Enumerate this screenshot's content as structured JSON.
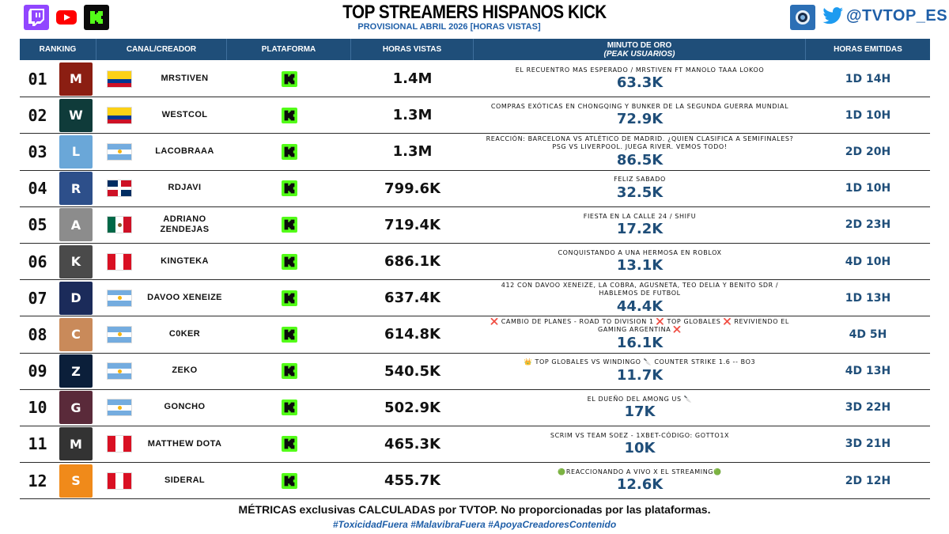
{
  "header": {
    "title": "TOP STREAMERS HISPANOS KICK",
    "subtitle": "PROVISIONAL ABRIL 2026 [HORAS VISTAS]",
    "handle": "@TVTOP_ES",
    "logos": [
      "twitch-icon",
      "youtube-icon",
      "kick-icon"
    ]
  },
  "columns": {
    "ranking": "RANKING",
    "canal": "CANAL/CREADOR",
    "plataforma": "PLATAFORMA",
    "horas_vistas": "HORAS VISTAS",
    "minuto_oro": "MINUTO DE ORO",
    "peak": "(PEAK USUARIOS)",
    "horas_emitidas": "HORAS EMITIDAS"
  },
  "rows": [
    {
      "rank": "01",
      "name": "MRSTIVEN",
      "country": "colombia",
      "platform": "kick",
      "hours": "1.4M",
      "peak_title": "EL RECUENTRO MAS ESPERADO / MRSTIVEN FT MANOLO TAAA LOKOO",
      "peak": "63.3K",
      "emitted": "1D 14H",
      "avatar_color": "#8b1e12",
      "avatar_text": "M"
    },
    {
      "rank": "02",
      "name": "WESTCOL",
      "country": "colombia",
      "platform": "kick",
      "hours": "1.3M",
      "peak_title": "COMPRAS EXÓTICAS EN CHONGQING Y BUNKER DE LA SEGUNDA GUERRA MUNDIAL",
      "peak": "72.9K",
      "emitted": "1D 10H",
      "avatar_color": "#0f3b3a",
      "avatar_text": "W"
    },
    {
      "rank": "03",
      "name": "LACOBRAAA",
      "country": "argentina",
      "platform": "kick",
      "hours": "1.3M",
      "peak_title": "REACCIÓN: BARCELONA VS ATLÉTICO DE MADRID. ¿QUIEN CLASIFICA A SEMIFINALES? PSG VS LIVERPOOL. JUEGA RIVER. VEMOS TODO!",
      "peak": "86.5K",
      "emitted": "2D 20H",
      "avatar_color": "#6aa7d8",
      "avatar_text": "L"
    },
    {
      "rank": "04",
      "name": "RDJAVI",
      "country": "dominican",
      "platform": "kick",
      "hours": "799.6K",
      "peak_title": "FELIZ SABADO",
      "peak": "32.5K",
      "emitted": "1D 10H",
      "avatar_color": "#2d4f8a",
      "avatar_text": "R"
    },
    {
      "rank": "05",
      "name": "ADRIANO ZENDEJAS",
      "country": "mexico",
      "platform": "kick",
      "hours": "719.4K",
      "peak_title": "FIESTA EN LA CALLE 24 / SHIFU",
      "peak": "17.2K",
      "emitted": "2D 23H",
      "avatar_color": "#8c8c8c",
      "avatar_text": "A"
    },
    {
      "rank": "06",
      "name": "KINGTEKA",
      "country": "peru",
      "platform": "kick",
      "hours": "686.1K",
      "peak_title": "CONQUISTANDO A UNA HERMOSA EN ROBLOX",
      "peak": "13.1K",
      "emitted": "4D 10H",
      "avatar_color": "#4a4a4a",
      "avatar_text": "K"
    },
    {
      "rank": "07",
      "name": "DAVOO XENEIZE",
      "country": "argentina",
      "platform": "kick",
      "hours": "637.4K",
      "peak_title": "412 CON DAVOO XENEIZE, LA COBRA, AGUSNETA, TEO DELIA Y BENITO SDR / HABLEMOS DE FUTBOL",
      "peak": "44.4K",
      "emitted": "1D 13H",
      "avatar_color": "#1b2b5a",
      "avatar_text": "D"
    },
    {
      "rank": "08",
      "name": "C0KER",
      "country": "argentina",
      "platform": "kick",
      "hours": "614.8K",
      "peak_title": "❌ CAMBIO DE PLANES - ROAD TO DIVISION 1 ❌ TOP GLOBALES ❌ REVIVIENDO EL GAMING ARGENTINA ❌",
      "peak": "16.1K",
      "emitted": "4D 5H",
      "avatar_color": "#c98a5a",
      "avatar_text": "C"
    },
    {
      "rank": "09",
      "name": "ZEKO",
      "country": "argentina",
      "platform": "kick",
      "hours": "540.5K",
      "peak_title": "👑 TOP GLOBALES VS WINDINGO 🔪 COUNTER STRIKE 1.6 -- BO3",
      "peak": "11.7K",
      "emitted": "4D 13H",
      "avatar_color": "#0b1f3a",
      "avatar_text": "Z"
    },
    {
      "rank": "10",
      "name": "GONCHO",
      "country": "argentina",
      "platform": "kick",
      "hours": "502.9K",
      "peak_title": "EL DUEÑO DEL AMONG US 🔪",
      "peak": "17K",
      "emitted": "3D 22H",
      "avatar_color": "#5a2a3a",
      "avatar_text": "G"
    },
    {
      "rank": "11",
      "name": "MATTHEW DOTA",
      "country": "peru",
      "platform": "kick",
      "hours": "465.3K",
      "peak_title": "SCRIM VS TEAM SOEZ - 1XBET-CÓDIGO: GOTTO1X",
      "peak": "10K",
      "emitted": "3D 21H",
      "avatar_color": "#333333",
      "avatar_text": "M"
    },
    {
      "rank": "12",
      "name": "SIDERAL",
      "country": "peru",
      "platform": "kick",
      "hours": "455.7K",
      "peak_title": "🟢REACCIONANDO A VIVO X EL STREAMING🟢",
      "peak": "12.6K",
      "emitted": "2D 12H",
      "avatar_color": "#f08a1a",
      "avatar_text": "S"
    }
  ],
  "footer": {
    "line1": "MÉTRICAS exclusivas CALCULADAS por TVTOP. No proporcionadas por las plataformas.",
    "line2": "#ToxicidadFuera #MalavibraFuera #ApoyaCreadoresContenido"
  },
  "colors": {
    "header_bg": "#1f4e79",
    "accent_blue": "#1f5fa8",
    "kick_green": "#53fc18"
  }
}
